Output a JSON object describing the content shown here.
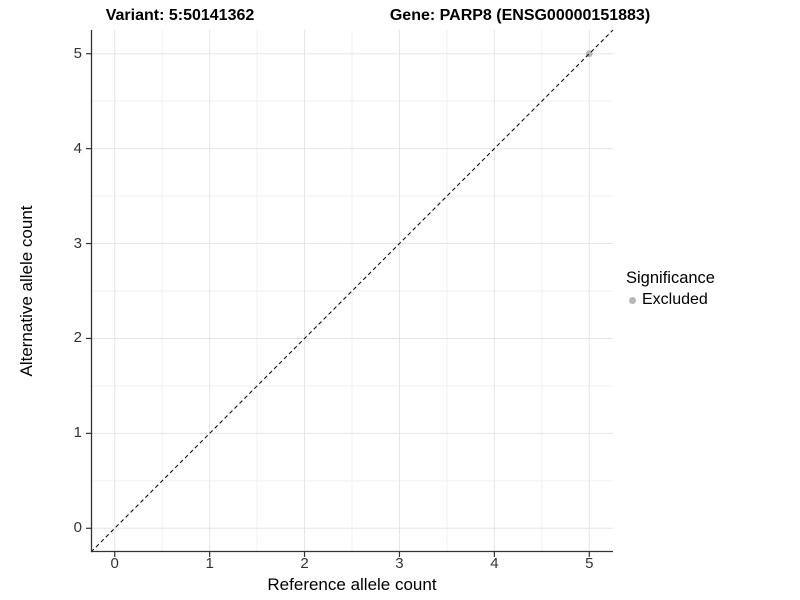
{
  "header": {
    "variant_title": "Variant: 5:50141362",
    "gene_title": "Gene: PARP8 (ENSG00000151883)"
  },
  "legend": {
    "title": "Significance",
    "items": [
      {
        "label": "Excluded",
        "color": "#b7b7b7"
      }
    ]
  },
  "chart_data": {
    "type": "scatter",
    "title": "",
    "xlabel": "Reference allele count",
    "ylabel": "Alternative allele count",
    "xlim": [
      -0.25,
      5.25
    ],
    "ylim": [
      -0.25,
      5.25
    ],
    "x_ticks": [
      0,
      1,
      2,
      3,
      4,
      5
    ],
    "y_ticks": [
      0,
      1,
      2,
      3,
      4,
      5
    ],
    "x_minor_ticks": [
      0.5,
      1.5,
      2.5,
      3.5,
      4.5
    ],
    "y_minor_ticks": [
      0.5,
      1.5,
      2.5,
      3.5,
      4.5
    ],
    "grid": true,
    "legend_position": "right",
    "series": [
      {
        "name": "Excluded",
        "color": "#b7b7b7",
        "points": [
          {
            "x": 5,
            "y": 5
          }
        ]
      }
    ],
    "reference_line": {
      "type": "identity",
      "style": "dashed",
      "color": "#111111"
    },
    "colors": {
      "major_grid": "#e5e5e5",
      "minor_grid": "#f1f1f1",
      "axis": "#333333",
      "tick_text": "#333333"
    }
  }
}
